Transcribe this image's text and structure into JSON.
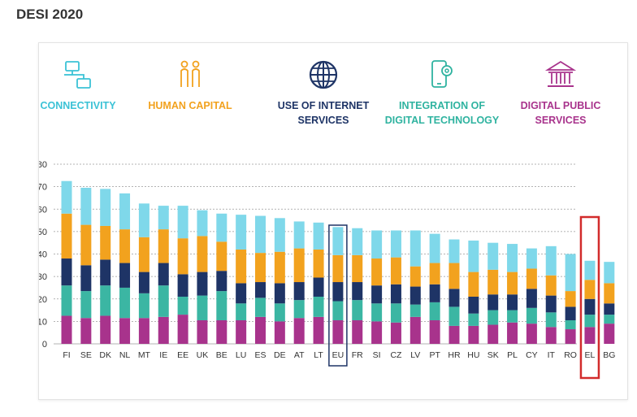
{
  "page_title": "DESI 2020",
  "colors": {
    "connectivity": "#7fd8ea",
    "human_capital": "#f2a21e",
    "internet_services": "#1e3466",
    "digital_technology": "#3bb6a3",
    "digital_public_services": "#a8338c",
    "eu_highlight": "#1e3466",
    "el_highlight": "#d22b2b"
  },
  "legend": [
    {
      "key": "connectivity",
      "label": "CONNECTIVITY",
      "icon": "connectivity-icon",
      "color": "#3bc2d6"
    },
    {
      "key": "human_capital",
      "label": "HUMAN CAPITAL",
      "icon": "people-icon",
      "color": "#f2a21e"
    },
    {
      "key": "internet_services",
      "label": "USE OF INTERNET\nSERVICES",
      "icon": "globe-icon",
      "color": "#1e3466"
    },
    {
      "key": "digital_technology",
      "label": "INTEGRATION OF\nDIGITAL TECHNOLOGY",
      "icon": "smartphone-gear-icon",
      "color": "#2fb3a0"
    },
    {
      "key": "digital_public_services",
      "label": "DIGITAL PUBLIC\nSERVICES",
      "icon": "government-building-icon",
      "color": "#a8338c"
    }
  ],
  "chart_data": {
    "type": "bar",
    "stacked": true,
    "title": "",
    "xlabel": "",
    "ylabel": "",
    "ylim": [
      0,
      80
    ],
    "yticks": [
      0,
      10,
      20,
      30,
      40,
      50,
      60,
      70,
      80
    ],
    "grid": "dotted horizontal",
    "categories": [
      "FI",
      "SE",
      "DK",
      "NL",
      "MT",
      "IE",
      "EE",
      "UK",
      "BE",
      "LU",
      "ES",
      "DE",
      "AT",
      "LT",
      "EU",
      "FR",
      "SI",
      "CZ",
      "LV",
      "PT",
      "HR",
      "HU",
      "SK",
      "PL",
      "CY",
      "IT",
      "RO",
      "EL",
      "BG"
    ],
    "highlighted": {
      "EU": "box",
      "EL": "box"
    },
    "series": [
      {
        "name": "DIGITAL PUBLIC SERVICES",
        "values": [
          12.5,
          11.5,
          12.5,
          11.5,
          11.5,
          12,
          13,
          10.5,
          10.5,
          10.5,
          12,
          10,
          11.5,
          12,
          10.5,
          10.5,
          10,
          9.5,
          12,
          10.5,
          8,
          8,
          8.5,
          9.5,
          9,
          7.5,
          6.5,
          7.5,
          9
        ]
      },
      {
        "name": "INTEGRATION OF DIGITAL TECHNOLOGY",
        "values": [
          13.5,
          12,
          13.5,
          13.5,
          11,
          14,
          8,
          11,
          13,
          7.5,
          8.5,
          8,
          8,
          9,
          8.5,
          9,
          8,
          8.5,
          5.5,
          8,
          8.5,
          5.5,
          6.5,
          5.5,
          7,
          6.5,
          4,
          5.5,
          4
        ]
      },
      {
        "name": "USE OF INTERNET SERVICES",
        "values": [
          12,
          11.5,
          11.5,
          11,
          9.5,
          10,
          10,
          10.5,
          9,
          9,
          7,
          9,
          8,
          8.5,
          8.5,
          8,
          8,
          8.5,
          8,
          8,
          8,
          7.5,
          7,
          7,
          8.5,
          7.5,
          6,
          7,
          5
        ]
      },
      {
        "name": "HUMAN CAPITAL",
        "values": [
          20,
          18,
          15,
          15,
          15.5,
          15,
          16,
          16,
          13,
          15,
          13,
          14,
          15,
          12.5,
          12,
          12,
          12,
          12,
          9,
          9.5,
          11.5,
          11,
          11,
          10,
          9,
          9,
          7,
          8.5,
          9
        ]
      },
      {
        "name": "CONNECTIVITY",
        "values": [
          14.5,
          16.5,
          16.5,
          16,
          15,
          10.5,
          14.5,
          11.5,
          12.5,
          15.5,
          16.5,
          15,
          12,
          12,
          12.5,
          12,
          12.5,
          12,
          16,
          13,
          10.5,
          14,
          12,
          12.5,
          9,
          13,
          16.5,
          8.5,
          9.5
        ]
      }
    ]
  }
}
